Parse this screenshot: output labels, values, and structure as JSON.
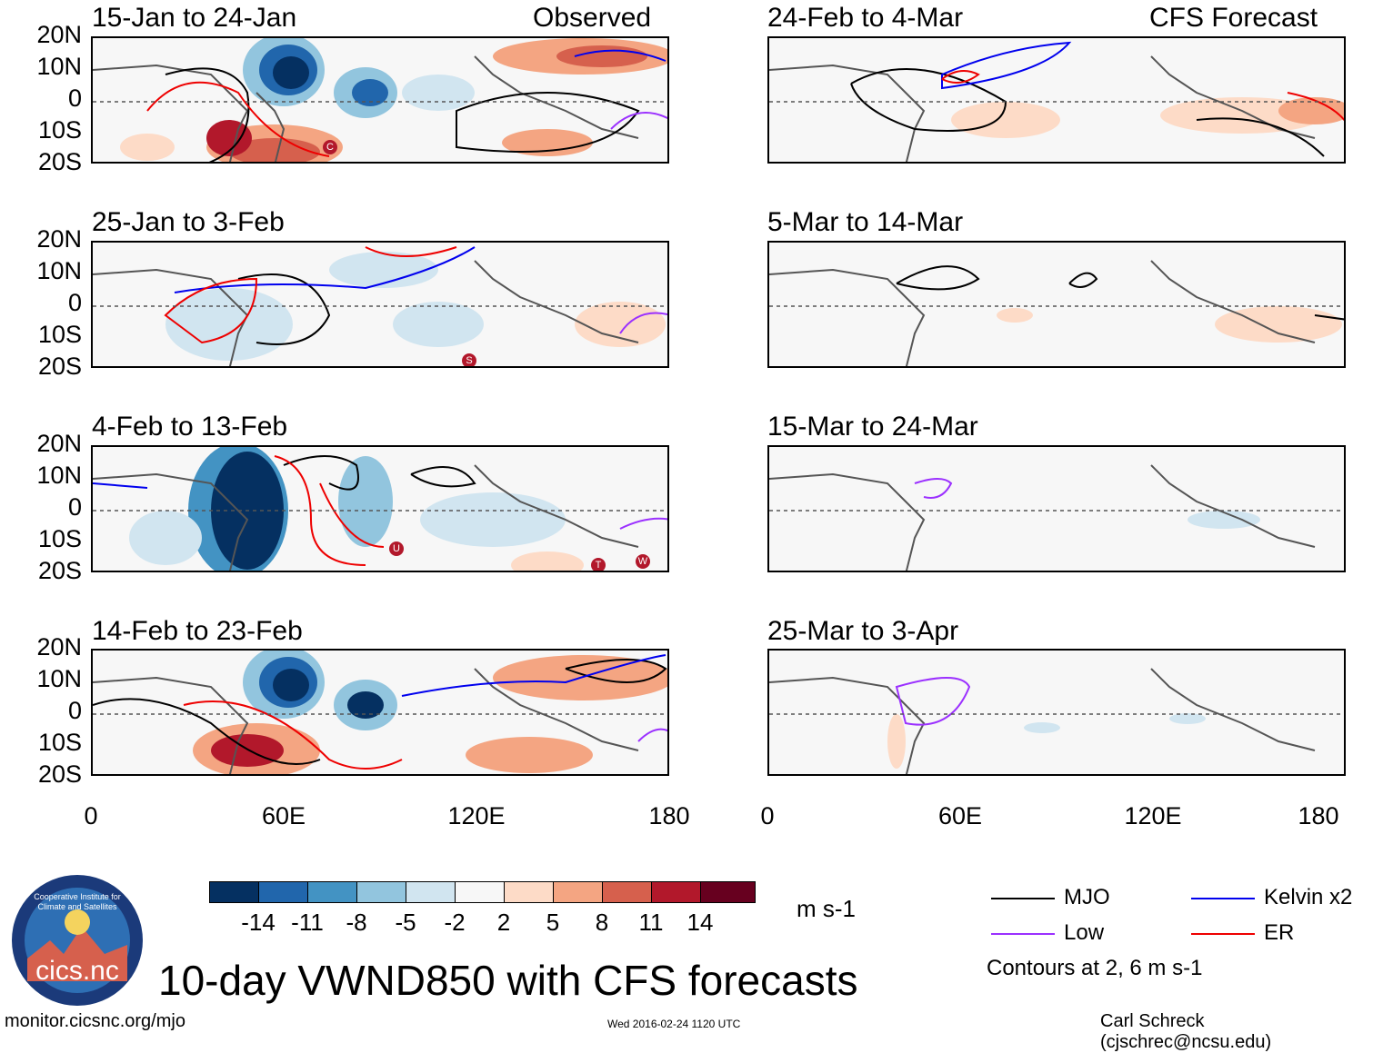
{
  "title": "10-day VWND850 with CFS forecasts",
  "left_column_label": "Observed",
  "right_column_label": "CFS Forecast",
  "latitude_ticks": [
    "20N",
    "10N",
    "0",
    "10S",
    "20S"
  ],
  "longitude_ticks": [
    "0",
    "60E",
    "120E",
    "180"
  ],
  "panels_left": [
    {
      "period": "15-Jan to 24-Jan",
      "storms": [
        "C"
      ]
    },
    {
      "period": "25-Jan to 3-Feb",
      "storms": [
        "S"
      ]
    },
    {
      "period": "4-Feb to 13-Feb",
      "storms": [
        "U",
        "T",
        "W"
      ]
    },
    {
      "period": "14-Feb to 23-Feb",
      "storms": []
    }
  ],
  "panels_right": [
    {
      "period": "24-Feb to 4-Mar"
    },
    {
      "period": "5-Mar to 14-Mar"
    },
    {
      "period": "15-Mar to 24-Mar"
    },
    {
      "period": "25-Mar to 3-Apr"
    }
  ],
  "colorbar": {
    "units": "m s-1",
    "ticks": [
      "-14",
      "-11",
      "-8",
      "-5",
      "-2",
      "2",
      "5",
      "8",
      "11",
      "14"
    ],
    "colors": [
      "#053061",
      "#2166ac",
      "#4393c3",
      "#92c5de",
      "#d1e5f0",
      "#f7f7f7",
      "#fddbc7",
      "#f4a582",
      "#d6604d",
      "#b2182b",
      "#67001f"
    ]
  },
  "legend": {
    "items": [
      {
        "label": "MJO",
        "color": "#000000"
      },
      {
        "label": "Kelvin x2",
        "color": "#0000ee"
      },
      {
        "label": "Low",
        "color": "#9b30ff"
      },
      {
        "label": "ER",
        "color": "#ee0000"
      }
    ],
    "note": "Contours at 2, 6 m s-1"
  },
  "logo_text": "cics.nc",
  "logo_ring_text": "Cooperative Institute for Climate and Satellites",
  "footer": {
    "url": "monitor.cicsnc.org/mjo",
    "timestamp": "Wed 2016-02-24 1120 UTC",
    "author": "Carl Schreck (cjschrec@ncsu.edu)"
  }
}
